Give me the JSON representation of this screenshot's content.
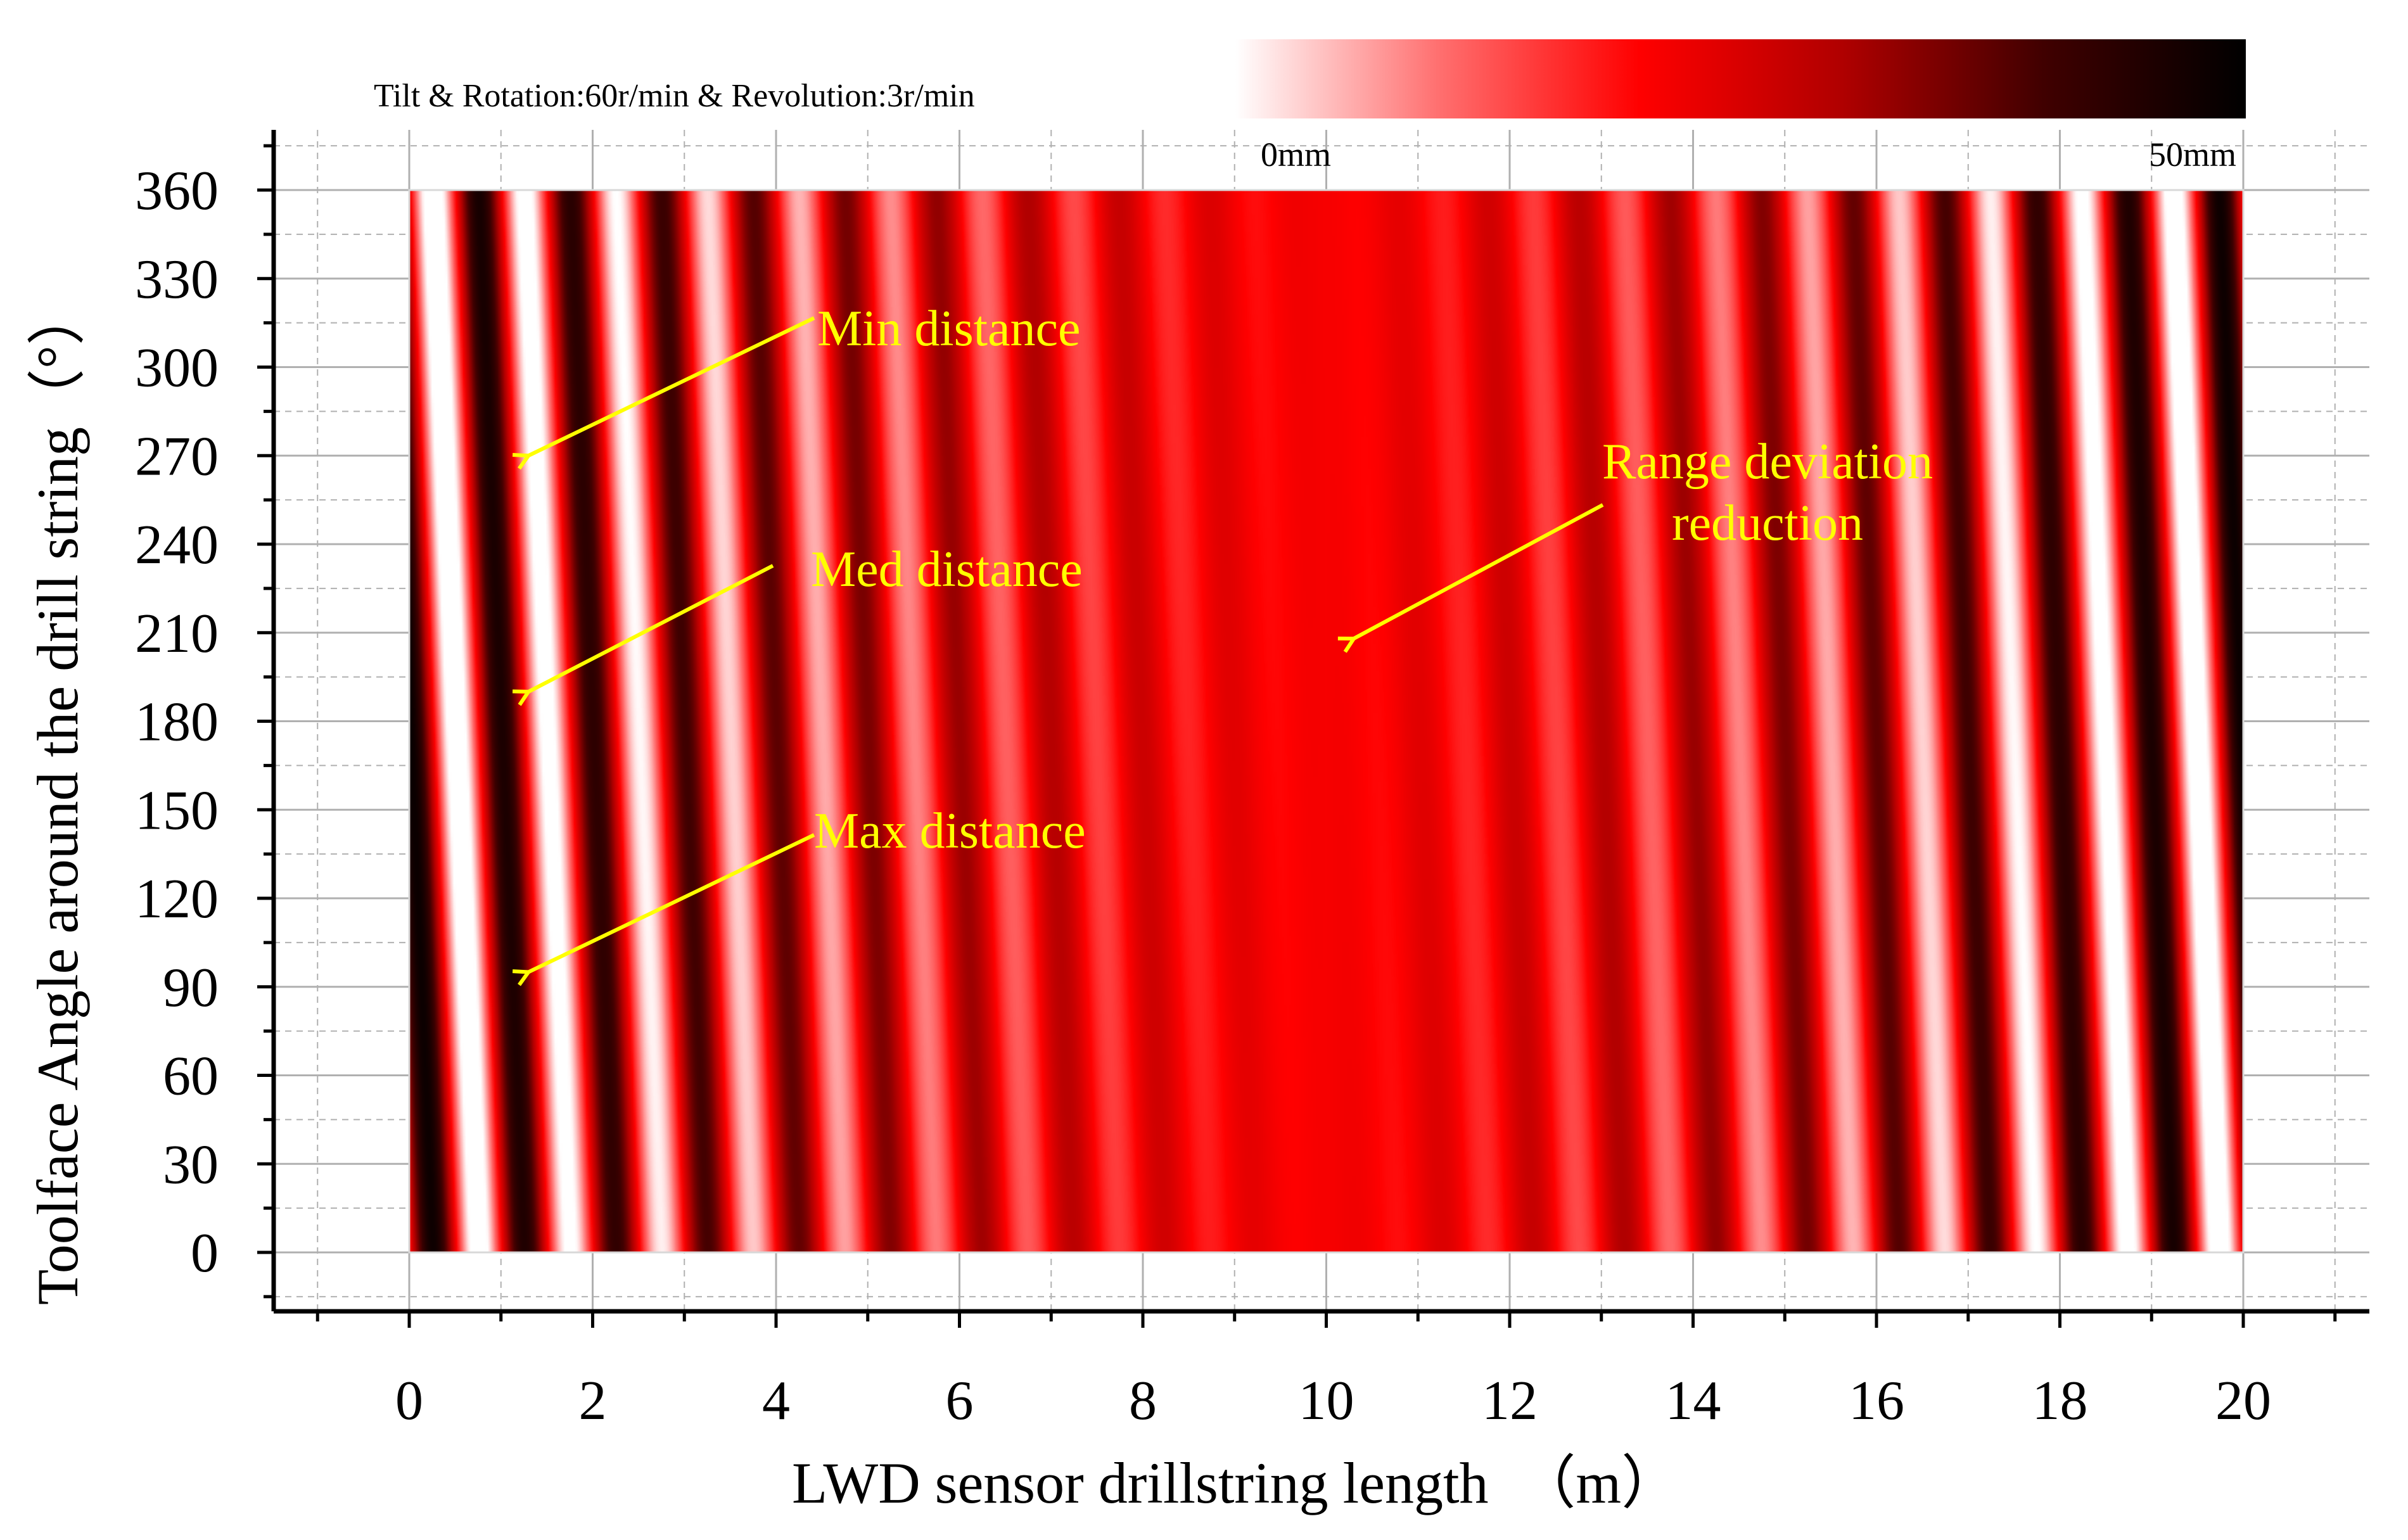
{
  "chart_data": {
    "type": "heatmap",
    "title": "Tilt & Rotation:60r/min & Revolution:3r/min",
    "xlabel": "LWD sensor drillstring length　（m）",
    "ylabel": "Toolface Angle around the drill string（°）",
    "xlim": [
      -1,
      21
    ],
    "ylim": [
      -10,
      370
    ],
    "data_xrange": [
      0,
      20
    ],
    "data_yrange": [
      0,
      360
    ],
    "x_ticks": [
      "0",
      "2",
      "4",
      "6",
      "8",
      "10",
      "12",
      "14",
      "16",
      "18",
      "20"
    ],
    "y_ticks": [
      "0",
      "30",
      "60",
      "90",
      "120",
      "150",
      "180",
      "210",
      "240",
      "270",
      "300",
      "330",
      "360"
    ],
    "grid": true,
    "colorbar": {
      "min_label": "0mm",
      "max_label": "50mm",
      "min": 0,
      "max": 50,
      "colors": [
        "#ffffff",
        "#ff7070",
        "#ff0000",
        "#b00000",
        "#400000",
        "#000000"
      ],
      "placement": "top-right"
    },
    "pattern": {
      "description_values": "banded distance field",
      "band_period_m": 1.0,
      "center_m": 10,
      "slant_m_over_360deg": 0.5
    },
    "annotations": [
      {
        "text": "Min distance",
        "points_to": [
          1.3,
          270
        ]
      },
      {
        "text": "Med distance",
        "points_to": [
          1.3,
          190
        ]
      },
      {
        "text": "Max distance",
        "points_to": [
          1.3,
          95
        ]
      },
      {
        "text_lines": [
          "Range deviation",
          "reduction"
        ],
        "points_to": [
          10.3,
          208
        ]
      }
    ],
    "colors": {
      "annotation": "#ffff00",
      "axis": "#000000",
      "grid": "#b0b0b0"
    }
  }
}
